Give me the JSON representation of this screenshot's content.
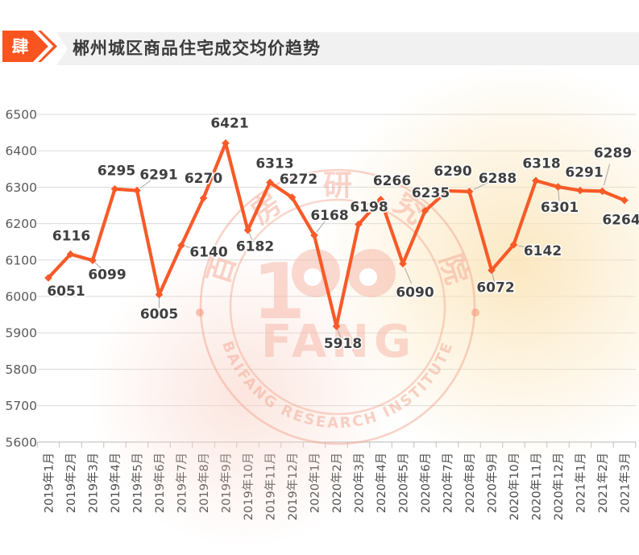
{
  "header": {
    "section_number": "肆",
    "title": "郴州城区商品住宅成交均价趋势"
  },
  "chart_data": {
    "type": "line",
    "title": "郴州城区商品住宅成交均价趋势",
    "categories": [
      "2019年1月",
      "2019年2月",
      "2019年3月",
      "2019年4月",
      "2019年5月",
      "2019年6月",
      "2019年7月",
      "2019年8月",
      "2019年9月",
      "2019年10月",
      "2019年11月",
      "2019年12月",
      "2020年1月",
      "2020年2月",
      "2020年3月",
      "2020年4月",
      "2020年5月",
      "2020年6月",
      "2020年7月",
      "2020年8月",
      "2020年9月",
      "2020年10月",
      "2020年11月",
      "2020年12月",
      "2021年1月",
      "2021年2月",
      "2021年3月"
    ],
    "values": [
      6051,
      6116,
      6099,
      6295,
      6291,
      6005,
      6140,
      6270,
      6421,
      6182,
      6313,
      6272,
      6168,
      5918,
      6198,
      6266,
      6090,
      6235,
      6290,
      6288,
      6072,
      6142,
      6318,
      6301,
      6291,
      6289,
      6264
    ],
    "ylim": [
      5600,
      6500
    ],
    "ytick_interval": 100,
    "grid": true,
    "legend_position": "none",
    "data_labels": true,
    "xlabel": "",
    "ylabel": ""
  },
  "watermark": {
    "logo_number": "1",
    "logo_word": "FANG",
    "arc_top_text": "百房研究院",
    "arc_bottom_text": "BAIFANG RESEARCH INSTITUTE"
  },
  "colors": {
    "accent_orange": "#f85a28",
    "header_bar_bg": "#f1f1f1",
    "grid_line": "#dadada",
    "axis_line": "#bfbfbf",
    "data_label_text": "#3f3f3f",
    "axis_label_text": "#595959",
    "leader_line": "#a6a6a6",
    "watermark_pink": "#f2a68f",
    "watermark_yellow": "#fbe5ba"
  }
}
